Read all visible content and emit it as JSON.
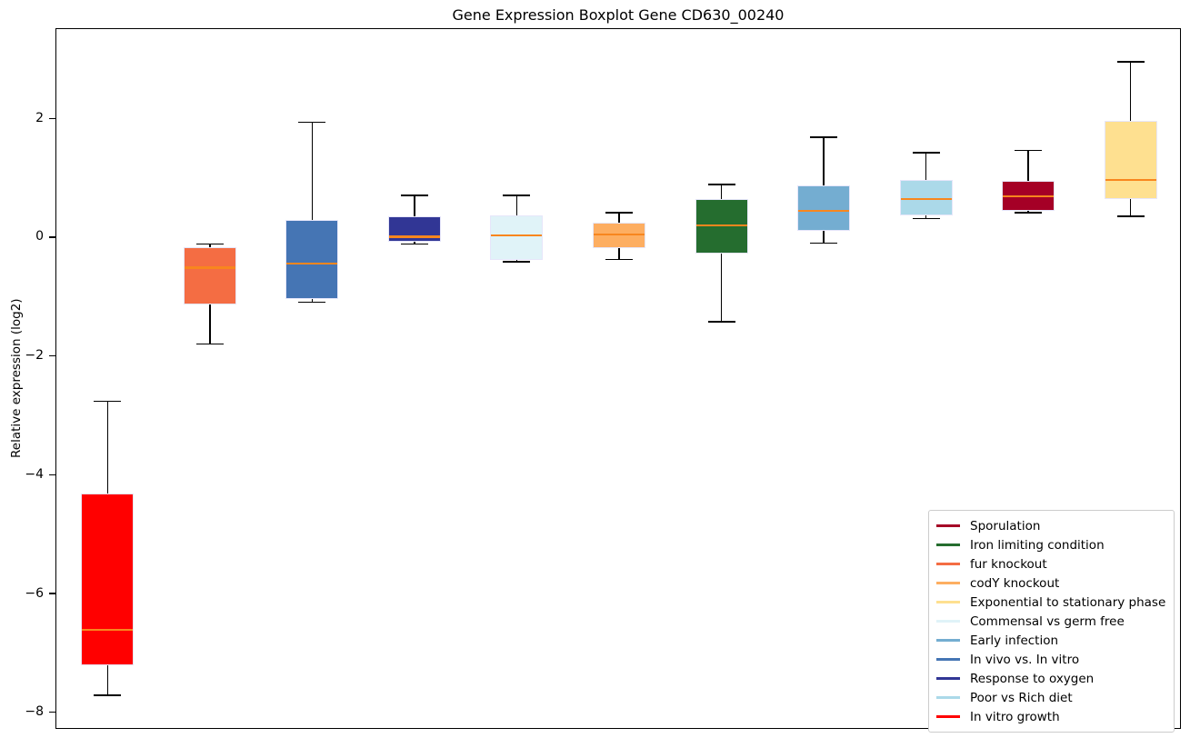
{
  "figure": {
    "title": "Gene Expression Boxplot Gene CD630_00240",
    "ylabel": "Relative expression (log2)"
  },
  "chart_data": {
    "type": "boxplot",
    "title": "Gene Expression Boxplot Gene CD630_00240",
    "xlabel": "",
    "ylabel": "Relative expression (log2)",
    "ylim": [
      -8.28,
      3.52
    ],
    "grid": false,
    "legend_position": "lower right",
    "yticks": [
      {
        "value": 2,
        "label": "2"
      },
      {
        "value": 0,
        "label": "0"
      },
      {
        "value": -2,
        "label": "−2"
      },
      {
        "value": -4,
        "label": "−4"
      },
      {
        "value": -6,
        "label": "−6"
      },
      {
        "value": -8,
        "label": "−8"
      }
    ],
    "series": [
      {
        "label": "In vitro growth",
        "color": "#FF0000",
        "whisker_low": -7.7,
        "q1": -7.2,
        "median": -6.6,
        "q3": -4.3,
        "whisker_high": -2.75
      },
      {
        "label": "fur knockout",
        "color": "#F46D43",
        "whisker_low": -1.78,
        "q1": -1.12,
        "median": -0.5,
        "q3": -0.15,
        "whisker_high": -0.1
      },
      {
        "label": "In vivo vs. In vitro",
        "color": "#4575B4",
        "whisker_low": -1.08,
        "q1": -1.03,
        "median": -0.43,
        "q3": 0.3,
        "whisker_high": 1.95
      },
      {
        "label": "Response to oxygen",
        "color": "#313695",
        "whisker_low": -0.1,
        "q1": -0.06,
        "median": 0.02,
        "q3": 0.37,
        "whisker_high": 0.72
      },
      {
        "label": "Commensal vs germ free",
        "color": "#E0F3F8",
        "whisker_low": -0.4,
        "q1": -0.37,
        "median": 0.05,
        "q3": 0.38,
        "whisker_high": 0.72
      },
      {
        "label": "codY knockout",
        "color": "#FDAE61",
        "whisker_low": -0.36,
        "q1": -0.17,
        "median": 0.06,
        "q3": 0.26,
        "whisker_high": 0.43
      },
      {
        "label": "Iron limiting condition",
        "color": "#256D2F",
        "whisker_low": -1.41,
        "q1": -0.26,
        "median": 0.21,
        "q3": 0.66,
        "whisker_high": 0.9
      },
      {
        "label": "Early infection",
        "color": "#74ADD1",
        "whisker_low": -0.08,
        "q1": 0.12,
        "median": 0.46,
        "q3": 0.89,
        "whisker_high": 1.7
      },
      {
        "label": "Poor vs Rich diet",
        "color": "#ABD9E9",
        "whisker_low": 0.33,
        "q1": 0.38,
        "median": 0.66,
        "q3": 0.98,
        "whisker_high": 1.44
      },
      {
        "label": "Sporulation",
        "color": "#A50026",
        "whisker_low": 0.43,
        "q1": 0.46,
        "median": 0.7,
        "q3": 0.96,
        "whisker_high": 1.48
      },
      {
        "label": "Exponential to stationary phase",
        "color": "#FEE090",
        "whisker_low": 0.37,
        "q1": 0.66,
        "median": 0.98,
        "q3": 1.97,
        "whisker_high": 2.97
      }
    ],
    "legend": [
      "Sporulation",
      "Iron limiting condition",
      "fur knockout",
      "codY knockout",
      "Exponential to stationary phase",
      "Commensal vs germ free",
      "Early infection",
      "In vivo vs. In vitro",
      "Response to oxygen",
      "Poor vs Rich diet",
      "In vitro growth"
    ]
  },
  "style": {
    "median_color": "#F8861E",
    "box_edge_color": "#E6E6FA",
    "whisker_color": "#000000",
    "axis_color": "#000000",
    "legend_border_color": "#CCCCCC",
    "background": "#FFFFFF"
  }
}
